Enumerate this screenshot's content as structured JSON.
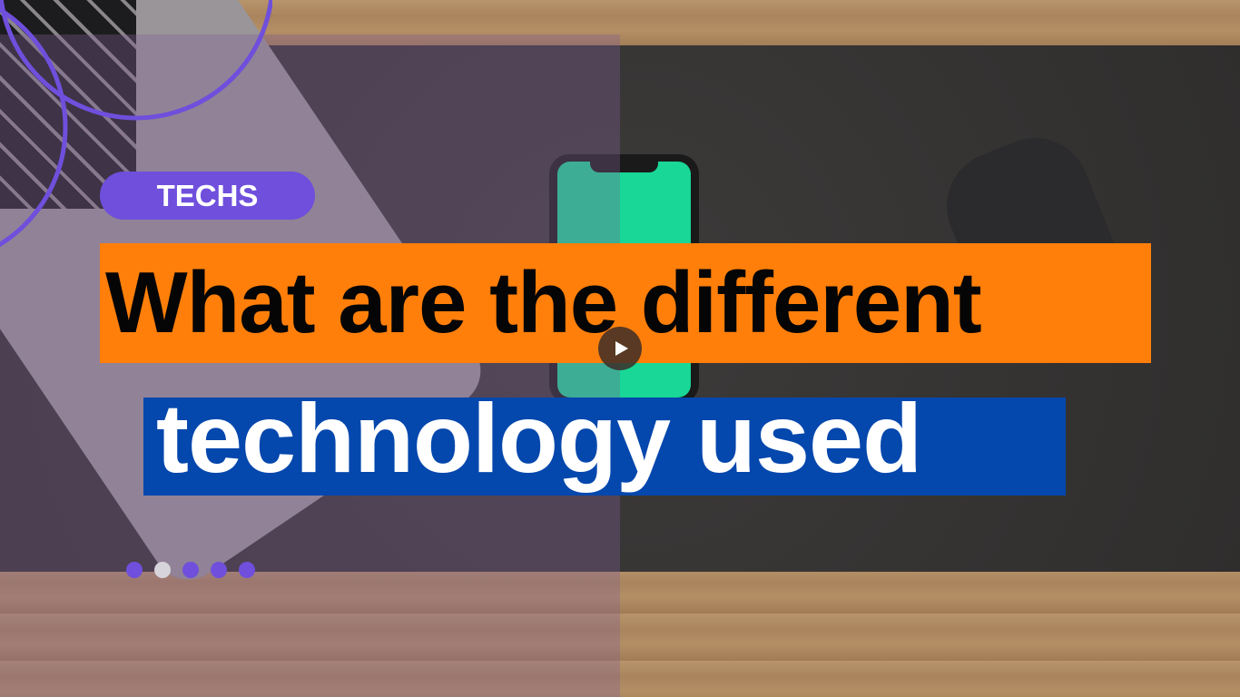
{
  "badge": {
    "label": "TECHS"
  },
  "headline": {
    "lines": [
      "What are the different",
      "technology used"
    ]
  }
}
